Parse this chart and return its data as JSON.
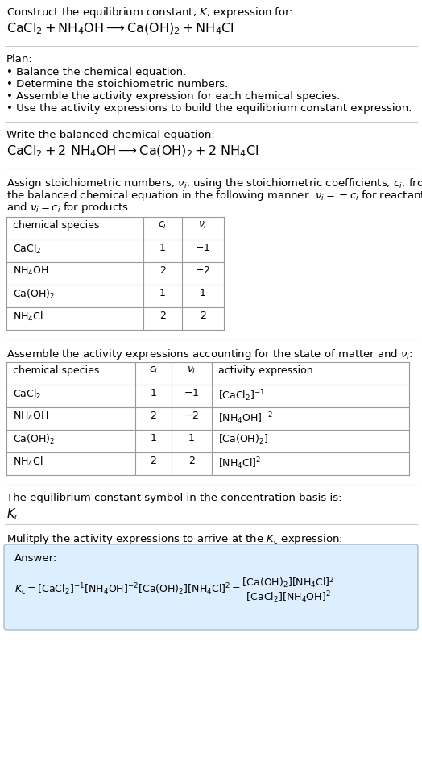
{
  "bg_color": "#ffffff",
  "text_color": "#000000",
  "title_line1": "Construct the equilibrium constant, $K$, expression for:",
  "title_line2": "$\\mathrm{CaCl_2 + NH_4OH \\longrightarrow Ca(OH)_2 + NH_4Cl}$",
  "plan_header": "Plan:",
  "plan_items": [
    "• Balance the chemical equation.",
    "• Determine the stoichiometric numbers.",
    "• Assemble the activity expression for each chemical species.",
    "• Use the activity expressions to build the equilibrium constant expression."
  ],
  "balanced_header": "Write the balanced chemical equation:",
  "balanced_eq": "$\\mathrm{CaCl_2 + 2\\ NH_4OH \\longrightarrow Ca(OH)_2 + 2\\ NH_4Cl}$",
  "stoich_intro_lines": [
    "Assign stoichiometric numbers, $\\nu_i$, using the stoichiometric coefficients, $c_i$, from",
    "the balanced chemical equation in the following manner: $\\nu_i = -c_i$ for reactants",
    "and $\\nu_i = c_i$ for products:"
  ],
  "table1_headers": [
    "chemical species",
    "$c_i$",
    "$\\nu_i$"
  ],
  "table1_rows": [
    [
      "$\\mathrm{CaCl_2}$",
      "1",
      "$-1$"
    ],
    [
      "$\\mathrm{NH_4OH}$",
      "2",
      "$-2$"
    ],
    [
      "$\\mathrm{Ca(OH)_2}$",
      "1",
      "1"
    ],
    [
      "$\\mathrm{NH_4Cl}$",
      "2",
      "2"
    ]
  ],
  "assemble_header": "Assemble the activity expressions accounting for the state of matter and $\\nu_i$:",
  "table2_headers": [
    "chemical species",
    "$c_i$",
    "$\\nu_i$",
    "activity expression"
  ],
  "table2_rows": [
    [
      "$\\mathrm{CaCl_2}$",
      "1",
      "$-1$",
      "$[\\mathrm{CaCl_2}]^{-1}$"
    ],
    [
      "$\\mathrm{NH_4OH}$",
      "2",
      "$-2$",
      "$[\\mathrm{NH_4OH}]^{-2}$"
    ],
    [
      "$\\mathrm{Ca(OH)_2}$",
      "1",
      "1",
      "$[\\mathrm{Ca(OH)_2}]$"
    ],
    [
      "$\\mathrm{NH_4Cl}$",
      "2",
      "2",
      "$[\\mathrm{NH_4Cl}]^2$"
    ]
  ],
  "kc_symbol_text": "The equilibrium constant symbol in the concentration basis is:",
  "kc_symbol": "$K_c$",
  "multiply_text": "Mulitply the activity expressions to arrive at the $K_c$ expression:",
  "answer_label": "Answer:",
  "kc_expression": "$K_c = [\\mathrm{CaCl_2}]^{-1} [\\mathrm{NH_4OH}]^{-2} [\\mathrm{Ca(OH)_2}][\\mathrm{NH_4Cl}]^2 = \\dfrac{[\\mathrm{Ca(OH)_2}][\\mathrm{NH_4Cl}]^2}{[\\mathrm{CaCl_2}][\\mathrm{NH_4OH}]^2}$",
  "table_border_color": "#999999",
  "answer_box_color": "#ddeeff",
  "answer_box_border": "#aabbcc",
  "section_line_color": "#cccccc",
  "font_size_small": 9.0,
  "font_size_body": 9.5,
  "font_size_eq": 11.5,
  "font_size_table": 9.0
}
